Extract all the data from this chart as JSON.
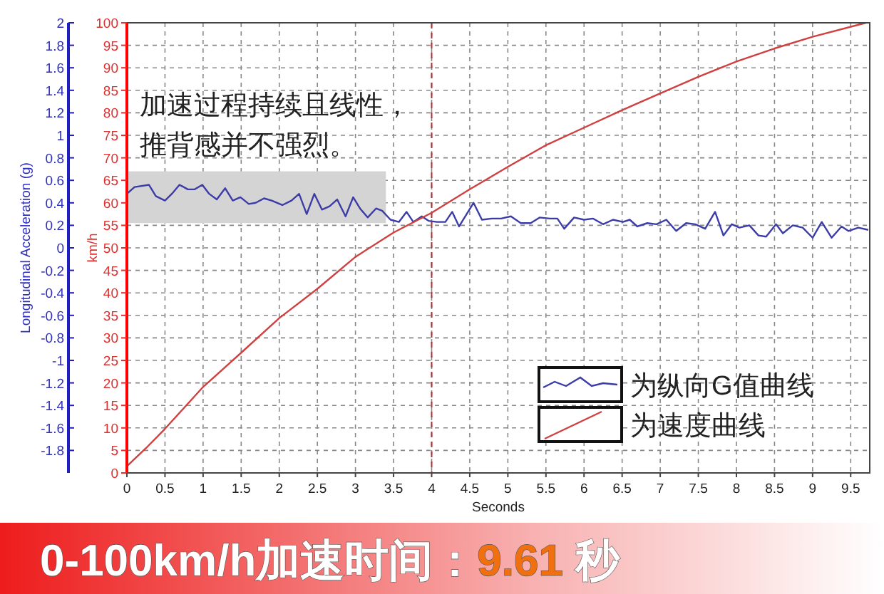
{
  "chart_data": {
    "type": "line",
    "title": "0-100km/h加速时间：9.61 秒",
    "xlabel": "Seconds",
    "ylabel": "Longitudinal Acceleration (g)",
    "y2label": "km/h",
    "annotations": [
      "加速过程持续且线性，",
      "推背感并不强烈。"
    ],
    "xlim": [
      0,
      9.75
    ],
    "xticks": [
      0,
      0.5,
      1,
      1.5,
      2,
      2.5,
      3,
      3.5,
      4,
      4.5,
      5,
      5.5,
      6,
      6.5,
      7,
      7.5,
      8,
      8.5,
      9,
      9.5
    ],
    "ylim": [
      -2,
      2
    ],
    "yticks": [
      -1.8,
      -1.6,
      -1.4,
      -1.2,
      -1,
      -0.8,
      -0.6,
      -0.4,
      -0.2,
      0,
      0.2,
      0.4,
      0.6,
      0.8,
      1,
      1.2,
      1.4,
      1.6,
      1.8,
      2
    ],
    "y2lim": [
      0,
      100
    ],
    "y2ticks": [
      0,
      5,
      10,
      15,
      20,
      25,
      30,
      35,
      40,
      45,
      50,
      55,
      60,
      65,
      70,
      75,
      80,
      85,
      90,
      95,
      100
    ],
    "grid": true,
    "legend": "bottom right",
    "line_style": "solid",
    "ref_lines": [
      {
        "axis": "x",
        "value": 4,
        "color": "#b03030",
        "line_style": "dashed"
      }
    ],
    "series": [
      {
        "name": "为纵向G值曲线",
        "color": "#3c3ca8",
        "axis": "y",
        "x": [
          0,
          0.1,
          0.29,
          0.38,
          0.5,
          0.59,
          0.69,
          0.8,
          0.89,
          0.99,
          1.08,
          1.18,
          1.29,
          1.39,
          1.49,
          1.6,
          1.69,
          1.8,
          1.9,
          2.04,
          2.16,
          2.26,
          2.36,
          2.46,
          2.56,
          2.66,
          2.76,
          2.87,
          2.97,
          3.06,
          3.16,
          3.27,
          3.35,
          3.46,
          3.57,
          3.67,
          3.76,
          3.87,
          3.96,
          4.07,
          4.18,
          4.27,
          4.36,
          4.55,
          4.66,
          4.79,
          4.91,
          5.04,
          5.17,
          5.3,
          5.42,
          5.55,
          5.65,
          5.74,
          5.87,
          6,
          6.12,
          6.25,
          6.38,
          6.51,
          6.6,
          6.7,
          6.83,
          6.95,
          7.08,
          7.21,
          7.34,
          7.46,
          7.59,
          7.72,
          7.83,
          7.94,
          8.04,
          8.17,
          8.29,
          8.39,
          8.52,
          8.61,
          8.74,
          8.87,
          9,
          9.12,
          9.25,
          9.38,
          9.47,
          9.6,
          9.73
        ],
        "values": [
          0.48,
          0.54,
          0.56,
          0.46,
          0.42,
          0.48,
          0.56,
          0.52,
          0.52,
          0.56,
          0.48,
          0.43,
          0.53,
          0.42,
          0.45,
          0.39,
          0.4,
          0.44,
          0.42,
          0.38,
          0.42,
          0.48,
          0.3,
          0.48,
          0.34,
          0.37,
          0.43,
          0.28,
          0.45,
          0.35,
          0.27,
          0.35,
          0.33,
          0.25,
          0.23,
          0.32,
          0.23,
          0.28,
          0.24,
          0.23,
          0.23,
          0.32,
          0.19,
          0.4,
          0.25,
          0.26,
          0.26,
          0.28,
          0.22,
          0.22,
          0.27,
          0.26,
          0.26,
          0.17,
          0.27,
          0.25,
          0.26,
          0.21,
          0.25,
          0.23,
          0.25,
          0.19,
          0.22,
          0.21,
          0.25,
          0.15,
          0.22,
          0.21,
          0.17,
          0.32,
          0.11,
          0.21,
          0.18,
          0.2,
          0.11,
          0.1,
          0.21,
          0.13,
          0.2,
          0.18,
          0.09,
          0.23,
          0.09,
          0.19,
          0.15,
          0.18,
          0.16
        ]
      },
      {
        "name": "为速度曲线",
        "color": "#d04040",
        "axis": "y2",
        "x": [
          0,
          0.25,
          0.5,
          1,
          1.5,
          2,
          2.5,
          3,
          3.5,
          4,
          4.5,
          5,
          5.5,
          6,
          6.5,
          7,
          7.5,
          8,
          8.5,
          9,
          9.7
        ],
        "values": [
          1.5,
          5.5,
          9.8,
          19.1,
          26.7,
          34.4,
          40.9,
          48,
          53.4,
          57.8,
          63,
          68,
          72.8,
          76.7,
          80.6,
          84.3,
          88,
          91.4,
          94.3,
          96.9,
          100
        ]
      }
    ]
  }
}
